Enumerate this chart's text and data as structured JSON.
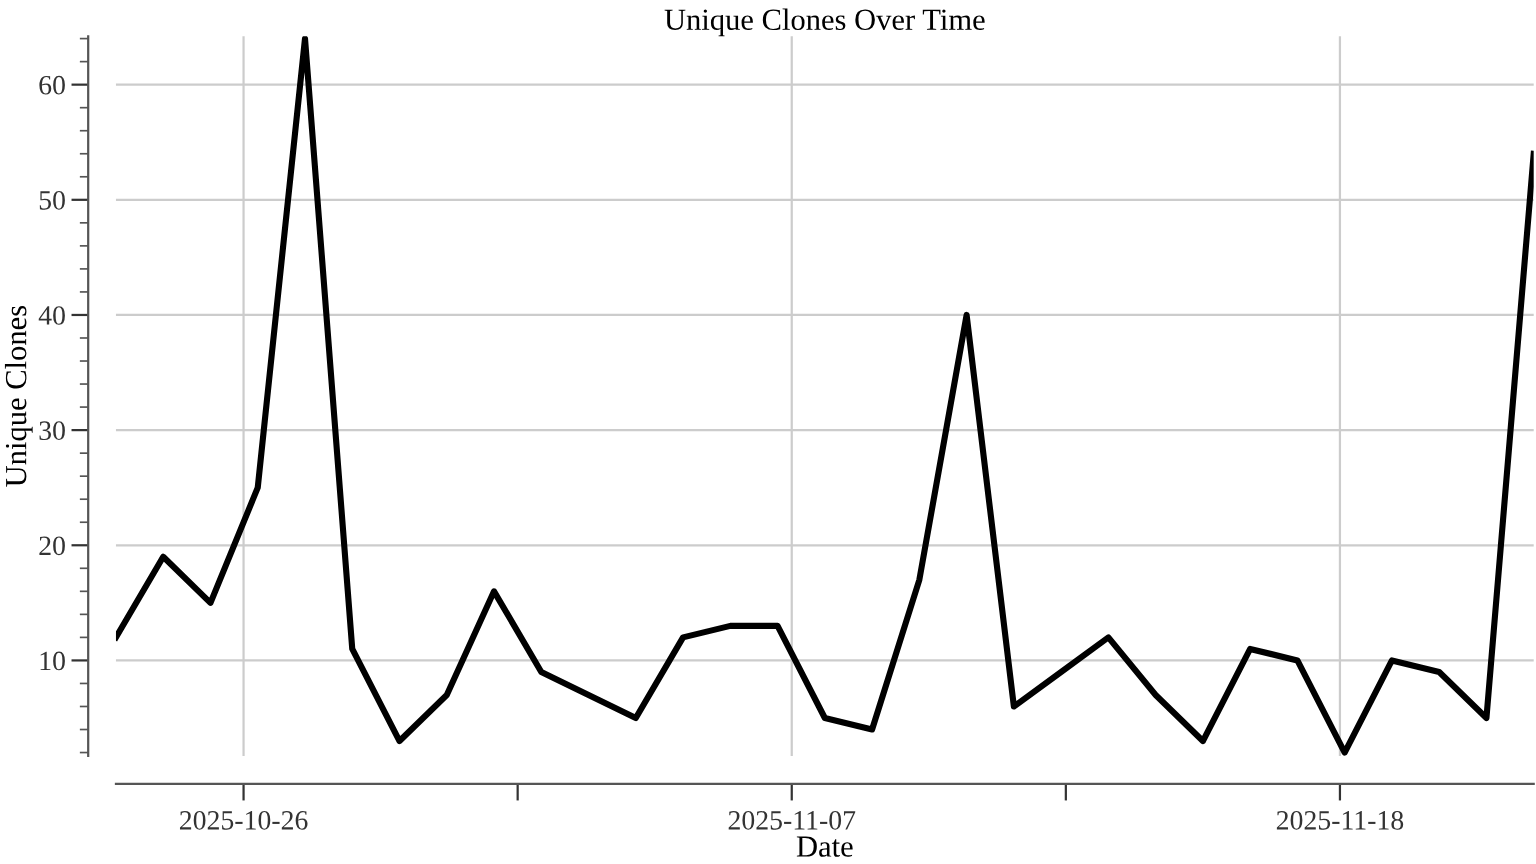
{
  "chart_data": {
    "type": "line",
    "title": "Unique Clones Over Time",
    "xlabel": "Date",
    "ylabel": "Unique Clones",
    "x": [
      "2025-10-23",
      "2025-10-24",
      "2025-10-25",
      "2025-10-26",
      "2025-10-27",
      "2025-10-28",
      "2025-10-29",
      "2025-10-30",
      "2025-10-31",
      "2025-11-01",
      "2025-11-02",
      "2025-11-03",
      "2025-11-04",
      "2025-11-05",
      "2025-11-06",
      "2025-11-07",
      "2025-11-08",
      "2025-11-09",
      "2025-11-10",
      "2025-11-11",
      "2025-11-12",
      "2025-11-13",
      "2025-11-14",
      "2025-11-15",
      "2025-11-16",
      "2025-11-17",
      "2025-11-18",
      "2025-11-19",
      "2025-11-20",
      "2025-11-21",
      "2025-11-22"
    ],
    "series": [
      {
        "color": "#000000",
        "values": [
          12,
          19,
          15,
          25,
          64,
          11,
          3,
          7,
          16,
          9,
          7,
          5,
          12,
          13,
          13,
          5,
          4,
          17,
          40,
          6,
          9,
          12,
          7,
          3,
          11,
          10,
          2,
          10,
          9,
          5,
          54
        ]
      }
    ],
    "xlim": [
      "2025-10-23",
      "2025-11-22"
    ],
    "xticks": [
      {
        "value": "2025-10-25T16:48",
        "label": "2025-10-26"
      },
      {
        "value": "2025-10-31T12:00",
        "label": null
      },
      {
        "value": "2025-11-06T07:12",
        "label": "2025-11-07"
      },
      {
        "value": "2025-11-12T02:24",
        "label": null
      },
      {
        "value": "2025-11-17T21:36",
        "label": "2025-11-18"
      }
    ],
    "ylim": [
      1.7,
      64.2
    ],
    "yticks": [
      10,
      20,
      30,
      40,
      50,
      60
    ],
    "grid": true,
    "legend": false,
    "marker": "none",
    "line_style": "solid"
  }
}
